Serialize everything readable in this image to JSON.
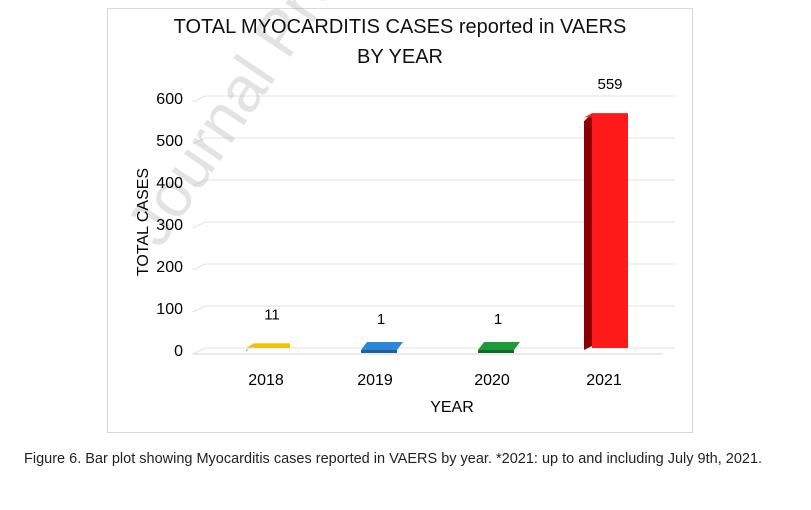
{
  "chart_data": {
    "type": "bar",
    "title": [
      "TOTAL MYOCARDITIS CASES reported in VAERS",
      "BY YEAR"
    ],
    "xlabel": "YEAR",
    "ylabel": "TOTAL CASES",
    "categories": [
      "2018",
      "2019",
      "2020",
      "2021"
    ],
    "values": [
      11,
      1,
      1,
      559
    ],
    "data_labels": [
      "11",
      "1",
      "1",
      "559"
    ],
    "bar_colors": [
      "#f2c200",
      "#2e86d6",
      "#1f9a3a",
      "#ff1a1a"
    ],
    "bar_side_colors": [
      "#b38f00",
      "#1f5f9c",
      "#146b28",
      "#8c0000"
    ],
    "yticks": [
      0,
      100,
      200,
      300,
      400,
      500,
      600
    ],
    "ylim": [
      0,
      600
    ],
    "grid": true,
    "legend": "none"
  },
  "watermark": "Journal Pre-proof",
  "caption": "Figure 6. Bar plot showing Myocarditis cases reported in VAERS by year. *2021: up to and including July 9th, 2021."
}
